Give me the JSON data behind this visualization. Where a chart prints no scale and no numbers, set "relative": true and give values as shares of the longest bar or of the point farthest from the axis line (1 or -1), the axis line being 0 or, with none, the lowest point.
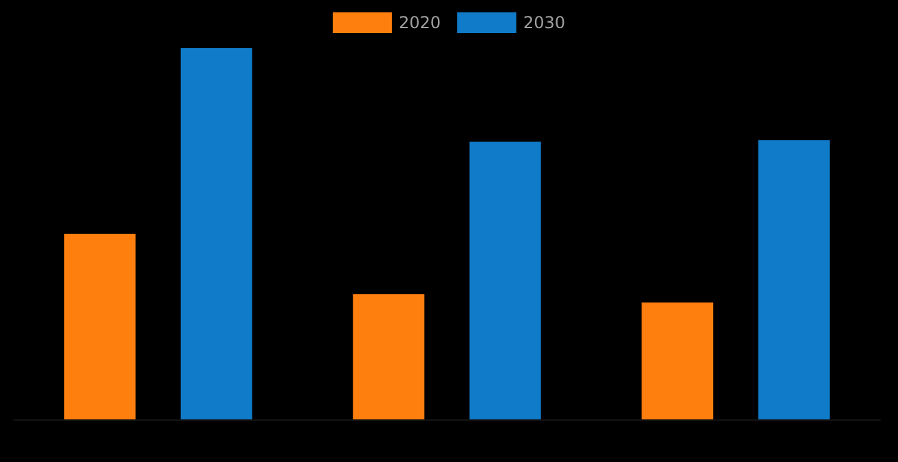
{
  "chart_data": {
    "type": "bar",
    "relative": true,
    "categories": [
      null,
      null,
      null
    ],
    "legend": "top",
    "series": [
      {
        "name": "2020",
        "color": "#ff7f0e",
        "values": [
          0.5,
          0.337,
          0.315
        ]
      },
      {
        "name": "2030",
        "color": "#0f7bc9",
        "values": [
          1,
          0.748,
          0.752
        ]
      }
    ]
  }
}
